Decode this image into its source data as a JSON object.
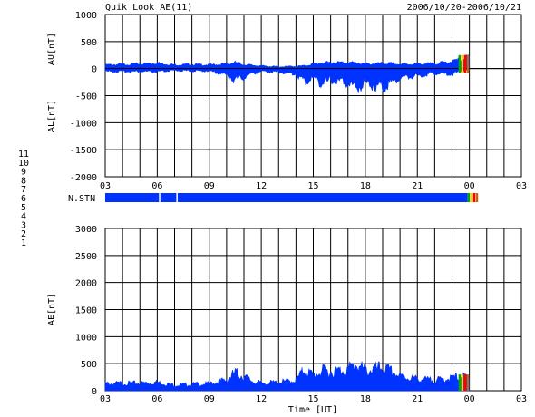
{
  "header": {
    "title": "Quik Look AE(11)",
    "date_range": "2006/10/20-2006/10/21"
  },
  "station_legend": {
    "labels": [
      "11",
      "10",
      "9",
      "8",
      "7",
      "6",
      "5",
      "4",
      "3",
      "2",
      "1"
    ],
    "colors": [
      "#00cccc",
      "#ff00ff",
      "#0000ff",
      "#ffe08a",
      "#00bb00",
      "#ff0000",
      "#aaaaaa",
      "#aaaaaa",
      "#00aaaa",
      "#aa00aa",
      "#0000cc"
    ]
  },
  "colors": {
    "fill": "#0033ff",
    "grid": "#000000",
    "recent_bands": [
      "#00aa00",
      "#ffcc00",
      "#ff0000",
      "#cc6600"
    ]
  },
  "chart_data": [
    {
      "type": "area",
      "panel": "AU/AL",
      "ylabel_top": "AU[nT]",
      "ylabel_bottom": "AL[nT]",
      "ylim": [
        -2000,
        1000
      ],
      "yticks": [
        1000,
        500,
        0,
        -500,
        -1000,
        -1500,
        -2000
      ],
      "xticks": [
        "03",
        "06",
        "09",
        "12",
        "15",
        "18",
        "21",
        "00",
        "03"
      ],
      "xlim_hours": [
        3,
        27
      ],
      "hours": [
        3,
        4,
        5,
        6,
        7,
        8,
        9,
        10,
        10.5,
        11,
        11.5,
        12,
        13,
        14,
        14.5,
        15,
        15.5,
        16,
        17,
        17.5,
        18,
        19,
        19.5,
        20,
        21,
        22,
        23,
        23.5,
        24
      ],
      "au": [
        80,
        90,
        100,
        120,
        80,
        90,
        80,
        100,
        130,
        90,
        70,
        60,
        40,
        50,
        60,
        100,
        120,
        130,
        130,
        120,
        100,
        110,
        110,
        90,
        100,
        110,
        150,
        200,
        250
      ],
      "al": [
        -60,
        -60,
        -60,
        -70,
        -40,
        -50,
        -50,
        -130,
        -250,
        -180,
        -100,
        -60,
        -70,
        -120,
        -280,
        -200,
        -300,
        -250,
        -300,
        -400,
        -300,
        -380,
        -280,
        -200,
        -150,
        -100,
        -120,
        -50,
        -30
      ],
      "grid": true
    },
    {
      "type": "bar",
      "panel": "N.STN",
      "label": "N.STN",
      "station_count": 11,
      "valid_until_hour": 23.9,
      "gaps_hours": [
        6.1,
        7.1
      ]
    },
    {
      "type": "area",
      "panel": "AE",
      "ylabel": "AE[nT]",
      "xlabel": "Time [UT]",
      "ylim": [
        0,
        3000
      ],
      "yticks": [
        3000,
        2500,
        2000,
        1500,
        1000,
        500,
        0
      ],
      "xticks": [
        "03",
        "06",
        "09",
        "12",
        "15",
        "18",
        "21",
        "00",
        "03"
      ],
      "xlim_hours": [
        3,
        27
      ],
      "hours": [
        3,
        4,
        5,
        6,
        7,
        8,
        9,
        10,
        10.5,
        11,
        11.5,
        12,
        13,
        14,
        14.5,
        15,
        15.5,
        16,
        17,
        17.5,
        18,
        19,
        19.5,
        20,
        21,
        22,
        23,
        23.5,
        24
      ],
      "values": [
        150,
        160,
        160,
        180,
        120,
        140,
        150,
        230,
        380,
        300,
        200,
        160,
        180,
        220,
        450,
        320,
        420,
        400,
        450,
        560,
        420,
        480,
        400,
        300,
        250,
        220,
        270,
        300,
        280
      ],
      "grid": true
    }
  ]
}
